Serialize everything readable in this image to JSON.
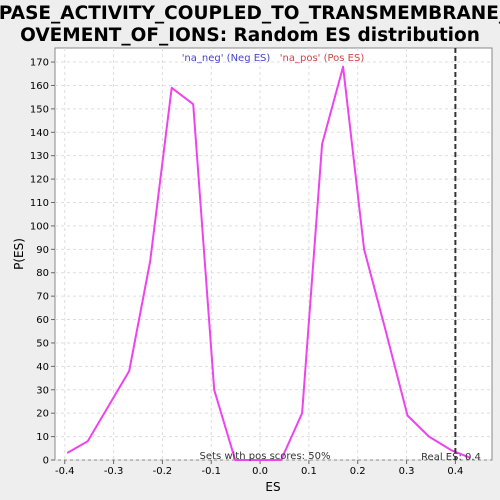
{
  "chart_data": {
    "type": "line",
    "title_lines": [
      "ATPASE_ACTIVITY_COUPLED_TO_TRANSMEMBRANE_M",
      "OVEMENT_OF_IONS: Random ES distribution"
    ],
    "xlabel": "ES",
    "ylabel": "P(ES)",
    "xlim": [
      -0.42,
      0.475
    ],
    "ylim": [
      0,
      176
    ],
    "x_ticks": [
      "-0.4",
      "-0.3",
      "-0.2",
      "-0.1",
      "0.0",
      "0.1",
      "0.2",
      "0.3",
      "0.4"
    ],
    "y_ticks": [
      "0",
      "10",
      "20",
      "30",
      "40",
      "50",
      "60",
      "70",
      "80",
      "90",
      "100",
      "110",
      "120",
      "130",
      "140",
      "150",
      "160",
      "170"
    ],
    "grid": true,
    "series": [
      {
        "color": "#ee44ee",
        "points": [
          [
            -0.395,
            3
          ],
          [
            -0.353,
            8
          ],
          [
            -0.268,
            38
          ],
          [
            -0.225,
            85
          ],
          [
            -0.181,
            159
          ],
          [
            -0.137,
            152
          ],
          [
            -0.094,
            30
          ],
          [
            -0.051,
            0
          ],
          [
            0.043,
            0
          ],
          [
            0.086,
            20
          ],
          [
            0.127,
            135
          ],
          [
            0.17,
            168
          ],
          [
            0.213,
            90
          ],
          [
            0.255,
            57
          ],
          [
            0.302,
            19
          ],
          [
            0.346,
            10
          ],
          [
            0.393,
            4
          ],
          [
            0.43,
            1
          ]
        ]
      }
    ],
    "legend": [
      {
        "label": "'na_neg' (Neg ES)",
        "color": "#4444cc"
      },
      {
        "label": "'na_pos' (Pos ES)",
        "color": "#cc4444"
      }
    ],
    "real_es": {
      "x": 0.4,
      "label": "Real ES: 0.4",
      "color": "#333333"
    },
    "annotation": "Sets with pos scores: 50%"
  }
}
